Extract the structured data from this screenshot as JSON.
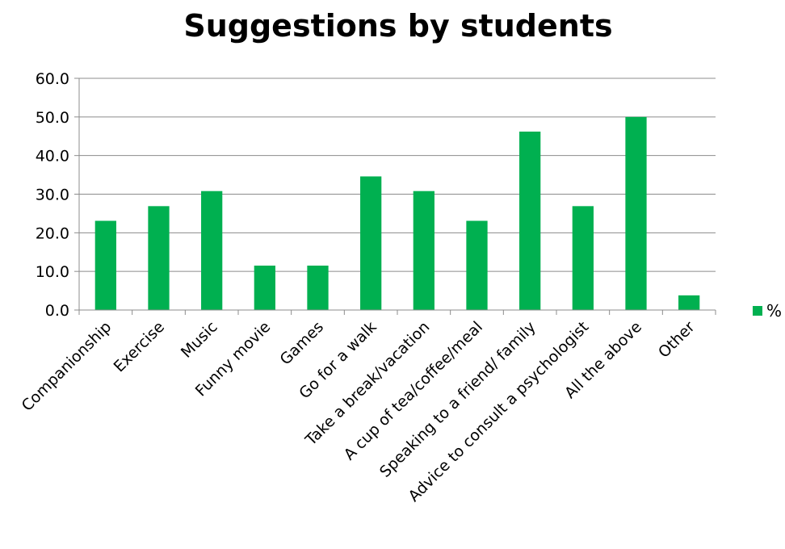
{
  "chart_data": {
    "type": "bar",
    "title": "Suggestions by students",
    "xlabel": "",
    "ylabel": "",
    "categories": [
      "Companionship",
      "Exercise",
      "Music",
      "Funny movie",
      "Games",
      "Go for a walk",
      "Take a break/vacation",
      "A cup of tea/coffee/meal",
      "Speaking to a friend/ family",
      "Advice to consult a psychologist",
      "All the above",
      "Other"
    ],
    "series": [
      {
        "name": "%",
        "color": "#00b050",
        "values": [
          23.1,
          26.9,
          30.8,
          11.5,
          11.5,
          34.6,
          30.8,
          23.1,
          46.2,
          26.9,
          50.0,
          3.8
        ]
      }
    ],
    "ylim": [
      0,
      60
    ],
    "yticks": [
      "0.0",
      "10.0",
      "20.0",
      "30.0",
      "40.0",
      "50.0",
      "60.0"
    ],
    "grid": true,
    "legend": "right"
  }
}
